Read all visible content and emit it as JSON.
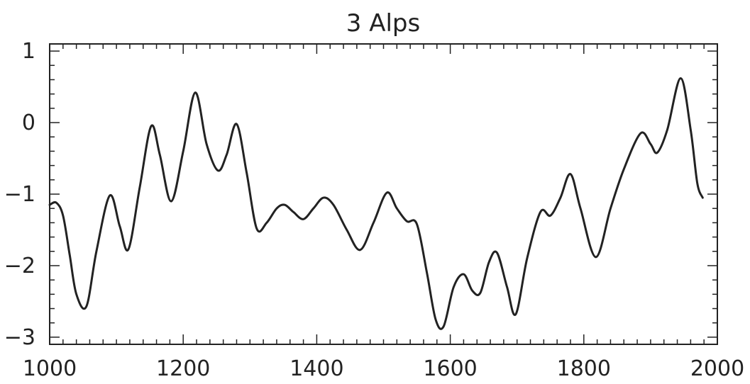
{
  "chart_data": {
    "type": "line",
    "title": "3 Alps",
    "xlabel": "",
    "ylabel": "",
    "xlim": [
      1000,
      2000
    ],
    "ylim": [
      -3.1,
      1.1
    ],
    "x_ticks": [
      1000,
      1200,
      1400,
      1600,
      1800,
      2000
    ],
    "x_tick_labels": [
      "1000",
      "1200",
      "1400",
      "1600",
      "1800",
      "2000"
    ],
    "y_ticks": [
      1,
      0,
      -1,
      -2,
      -3
    ],
    "y_tick_labels": [
      "1",
      "0",
      "−1",
      "−2",
      "−3"
    ],
    "x_minor_step": 20,
    "y_minor_step": 0.2,
    "grid": false,
    "series": [
      {
        "color": "#222222",
        "x": [
          1000,
          1010,
          1020,
          1030,
          1040,
          1055,
          1070,
          1090,
          1105,
          1118,
          1135,
          1152,
          1165,
          1182,
          1200,
          1218,
          1235,
          1252,
          1265,
          1280,
          1295,
          1310,
          1325,
          1340,
          1352,
          1365,
          1380,
          1395,
          1410,
          1425,
          1445,
          1465,
          1485,
          1505,
          1520,
          1535,
          1550,
          1565,
          1578,
          1590,
          1605,
          1620,
          1633,
          1645,
          1658,
          1670,
          1685,
          1698,
          1715,
          1735,
          1750,
          1765,
          1780,
          1795,
          1818,
          1840,
          1860,
          1885,
          1900,
          1910,
          1925,
          1945,
          1960,
          1970,
          1978
        ],
        "y": [
          -1.15,
          -1.12,
          -1.3,
          -1.85,
          -2.4,
          -2.57,
          -1.8,
          -1.02,
          -1.45,
          -1.77,
          -0.9,
          -0.05,
          -0.45,
          -1.1,
          -0.4,
          0.42,
          -0.3,
          -0.67,
          -0.45,
          -0.02,
          -0.7,
          -1.48,
          -1.4,
          -1.2,
          -1.15,
          -1.25,
          -1.35,
          -1.2,
          -1.05,
          -1.15,
          -1.5,
          -1.78,
          -1.4,
          -0.98,
          -1.2,
          -1.38,
          -1.42,
          -2.1,
          -2.75,
          -2.85,
          -2.3,
          -2.12,
          -2.35,
          -2.38,
          -1.95,
          -1.82,
          -2.3,
          -2.68,
          -1.9,
          -1.25,
          -1.3,
          -1.05,
          -0.72,
          -1.2,
          -1.88,
          -1.2,
          -0.65,
          -0.15,
          -0.3,
          -0.42,
          -0.1,
          0.62,
          -0.1,
          -0.85,
          -1.05
        ]
      }
    ]
  }
}
